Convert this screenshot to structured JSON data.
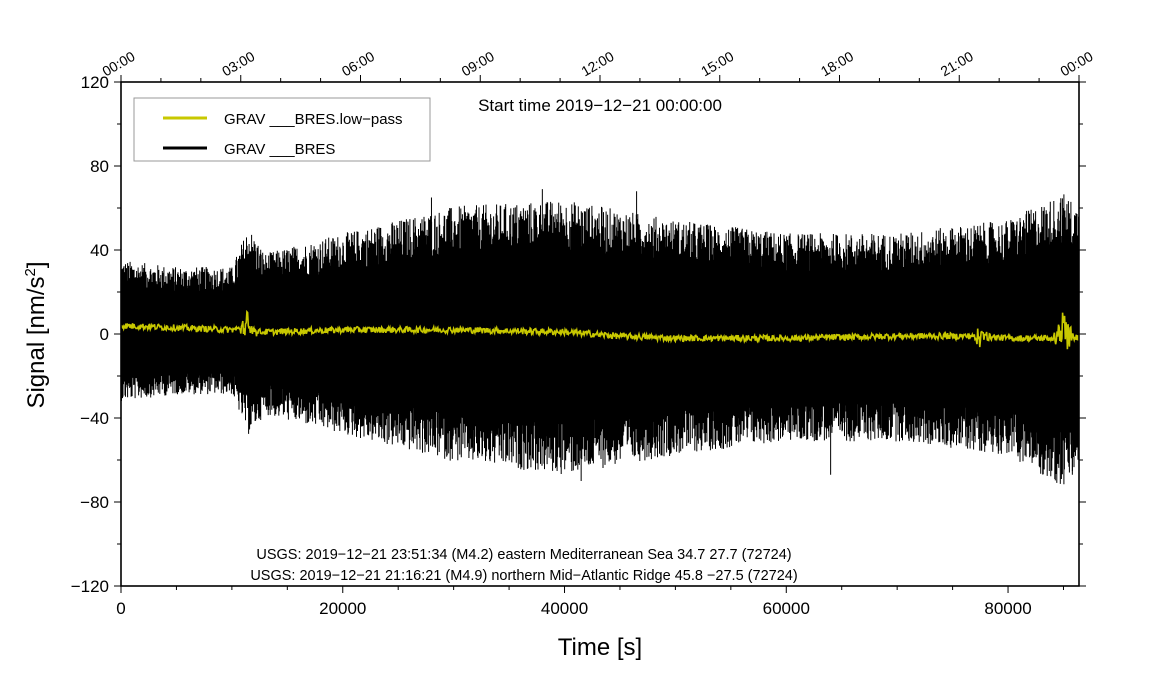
{
  "chart_data": {
    "type": "line",
    "xlabel": "Time [s]",
    "ylabel_main": "Signal [nm/s",
    "ylabel_sup": "2",
    "ylabel_close": "]",
    "xlim": [
      0,
      86400
    ],
    "ylim": [
      -120,
      120
    ],
    "x_ticks": [
      0,
      20000,
      40000,
      60000,
      80000
    ],
    "x_tick_labels": [
      "0",
      "20000",
      "40000",
      "60000",
      "80000"
    ],
    "y_ticks": [
      -120,
      -80,
      -40,
      0,
      40,
      80,
      120
    ],
    "y_tick_labels": [
      "−120",
      "−80",
      "−40",
      "0",
      "40",
      "80",
      "120"
    ],
    "top_axis_seconds": [
      0,
      10800,
      21600,
      32400,
      43200,
      54000,
      64800,
      75600,
      86400
    ],
    "top_axis_labels": [
      "00:00",
      "03:00",
      "06:00",
      "09:00",
      "12:00",
      "15:00",
      "18:00",
      "21:00",
      "00:00"
    ],
    "start_time_text": "Start time 2019−12−21 00:00:00",
    "legend": [
      {
        "name": "GRAV ___BRES.low−pass",
        "color": "#c8c800"
      },
      {
        "name": "GRAV ___BRES",
        "color": "#000000"
      }
    ],
    "legend_position": "top-left",
    "series": [
      {
        "name": "GRAV ___BRES",
        "color": "#000000",
        "envelope_x": [
          0,
          5000,
          10000,
          11500,
          13000,
          20000,
          30000,
          40000,
          50000,
          60000,
          70000,
          80000,
          85000,
          86400
        ],
        "envelope_upper": [
          22,
          20,
          20,
          32,
          24,
          30,
          38,
          40,
          34,
          30,
          30,
          34,
          42,
          38
        ],
        "envelope_lower": [
          -20,
          -18,
          -18,
          -30,
          -24,
          -30,
          -38,
          -42,
          -36,
          -32,
          -32,
          -36,
          -46,
          -40
        ],
        "peak_x": [
          1000,
          12000,
          28000,
          38000,
          41500,
          46500,
          55000,
          64000,
          75000,
          82000,
          85000,
          85800
        ],
        "peak_y": [
          30,
          -28,
          65,
          69,
          -70,
          68,
          49,
          -67,
          50,
          -58,
          60,
          -67
        ]
      },
      {
        "name": "GRAV ___BRES.low−pass",
        "color": "#c8c800",
        "x": [
          0,
          5000,
          10000,
          11500,
          12500,
          13500,
          20000,
          30000,
          40000,
          45000,
          50000,
          60000,
          70000,
          77500,
          80000,
          84000,
          85000,
          86000,
          86400
        ],
        "y": [
          4,
          3,
          2,
          3,
          1,
          1,
          2,
          2,
          1,
          -1,
          -2,
          -2,
          -1,
          -1,
          -2,
          -2,
          0,
          -2,
          -1
        ],
        "burst_x": [
          11500,
          77500,
          85000
        ],
        "burst_amp": [
          9,
          5,
          14
        ]
      }
    ],
    "annotations": [
      "USGS: 2019−12−21 23:51:34 (M4.2) eastern Mediterranean Sea 34.7 27.7 (72724)",
      "USGS: 2019−12−21 21:16:21 (M4.9) northern Mid−Atlantic Ridge 45.8 −27.5 (72724)"
    ],
    "grid": false
  }
}
